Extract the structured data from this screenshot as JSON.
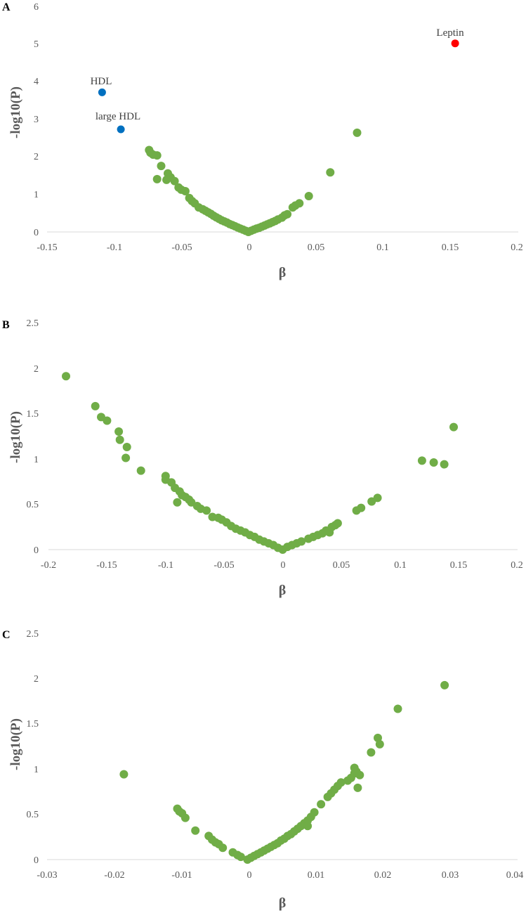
{
  "chart_data": [
    {
      "type": "scatter",
      "panel_label": "A",
      "xlabel": "β",
      "ylabel": "-log10(P)",
      "xlim": [
        -0.15,
        0.2
      ],
      "ylim": [
        0,
        6
      ],
      "x_ticks": [
        "-0.15",
        "-0.1",
        "-0.05",
        "0",
        "0.05",
        "0.1",
        "0.15",
        "0.2"
      ],
      "y_ticks": [
        "0",
        "1",
        "2",
        "3",
        "4",
        "5",
        "6"
      ],
      "grid": false,
      "colors": {
        "points": "#70ad47",
        "highlight_negative": "#0070c0",
        "highlight_positive": "#ff0000",
        "axis": "#d9d9d9"
      },
      "annotations": [
        {
          "text": "HDL",
          "x": -0.109,
          "y": 3.7
        },
        {
          "text": "large HDL",
          "x": -0.095,
          "y": 2.72
        },
        {
          "text": "Leptin",
          "x": 0.154,
          "y": 5.0
        }
      ],
      "highlighted_points": [
        {
          "label": "HDL",
          "x": -0.109,
          "y": 3.7,
          "color": "#0070c0"
        },
        {
          "label": "large HDL",
          "x": -0.095,
          "y": 2.72,
          "color": "#0070c0"
        },
        {
          "label": "Leptin",
          "x": 0.154,
          "y": 5.0,
          "color": "#ff0000"
        }
      ],
      "points": [
        [
          -0.074,
          2.17
        ],
        [
          -0.073,
          2.1
        ],
        [
          -0.071,
          2.05
        ],
        [
          -0.068,
          2.03
        ],
        [
          -0.065,
          1.75
        ],
        [
          -0.068,
          1.4
        ],
        [
          -0.06,
          1.55
        ],
        [
          -0.058,
          1.45
        ],
        [
          -0.061,
          1.38
        ],
        [
          -0.055,
          1.35
        ],
        [
          -0.052,
          1.18
        ],
        [
          -0.05,
          1.12
        ],
        [
          -0.047,
          1.08
        ],
        [
          -0.044,
          0.9
        ],
        [
          -0.042,
          0.82
        ],
        [
          -0.04,
          0.76
        ],
        [
          -0.037,
          0.65
        ],
        [
          -0.034,
          0.6
        ],
        [
          -0.032,
          0.56
        ],
        [
          -0.03,
          0.52
        ],
        [
          -0.028,
          0.48
        ],
        [
          -0.026,
          0.43
        ],
        [
          -0.024,
          0.39
        ],
        [
          -0.022,
          0.35
        ],
        [
          -0.02,
          0.31
        ],
        [
          -0.018,
          0.28
        ],
        [
          -0.016,
          0.25
        ],
        [
          -0.014,
          0.21
        ],
        [
          -0.012,
          0.18
        ],
        [
          -0.01,
          0.15
        ],
        [
          -0.008,
          0.12
        ],
        [
          -0.006,
          0.09
        ],
        [
          -0.004,
          0.06
        ],
        [
          -0.002,
          0.03
        ],
        [
          0.0,
          0.0
        ],
        [
          0.002,
          0.03
        ],
        [
          0.004,
          0.06
        ],
        [
          0.006,
          0.09
        ],
        [
          0.008,
          0.11
        ],
        [
          0.01,
          0.14
        ],
        [
          0.012,
          0.17
        ],
        [
          0.014,
          0.2
        ],
        [
          0.016,
          0.23
        ],
        [
          0.018,
          0.26
        ],
        [
          0.02,
          0.29
        ],
        [
          0.022,
          0.33
        ],
        [
          0.025,
          0.38
        ],
        [
          0.027,
          0.44
        ],
        [
          0.029,
          0.47
        ],
        [
          0.033,
          0.65
        ],
        [
          0.035,
          0.7
        ],
        [
          0.038,
          0.76
        ],
        [
          0.045,
          0.95
        ],
        [
          0.061,
          1.58
        ],
        [
          0.081,
          2.63
        ]
      ]
    },
    {
      "type": "scatter",
      "panel_label": "B",
      "xlabel": "β",
      "ylabel": "-log10(P)",
      "xlim": [
        -0.2,
        0.2
      ],
      "ylim": [
        0,
        2.5
      ],
      "x_ticks": [
        "-0.2",
        "-0.15",
        "-0.1",
        "-0.05",
        "0",
        "0.05",
        "0.1",
        "0.15",
        "0.2"
      ],
      "y_ticks": [
        "0",
        "0.5",
        "1",
        "1.5",
        "2",
        "2.5"
      ],
      "grid": false,
      "colors": {
        "points": "#70ad47",
        "axis": "#d9d9d9"
      },
      "points": [
        [
          -0.185,
          1.91
        ],
        [
          -0.16,
          1.58
        ],
        [
          -0.155,
          1.46
        ],
        [
          -0.15,
          1.42
        ],
        [
          -0.14,
          1.3
        ],
        [
          -0.139,
          1.21
        ],
        [
          -0.133,
          1.13
        ],
        [
          -0.134,
          1.01
        ],
        [
          -0.121,
          0.87
        ],
        [
          -0.1,
          0.81
        ],
        [
          -0.1,
          0.77
        ],
        [
          -0.095,
          0.74
        ],
        [
          -0.092,
          0.68
        ],
        [
          -0.088,
          0.64
        ],
        [
          -0.09,
          0.52
        ],
        [
          -0.086,
          0.6
        ],
        [
          -0.083,
          0.58
        ],
        [
          -0.08,
          0.55
        ],
        [
          -0.078,
          0.52
        ],
        [
          -0.073,
          0.48
        ],
        [
          -0.07,
          0.45
        ],
        [
          -0.065,
          0.43
        ],
        [
          -0.06,
          0.36
        ],
        [
          -0.055,
          0.35
        ],
        [
          -0.052,
          0.33
        ],
        [
          -0.048,
          0.3
        ],
        [
          -0.044,
          0.26
        ],
        [
          -0.04,
          0.23
        ],
        [
          -0.036,
          0.21
        ],
        [
          -0.032,
          0.19
        ],
        [
          -0.028,
          0.16
        ],
        [
          -0.024,
          0.14
        ],
        [
          -0.02,
          0.11
        ],
        [
          -0.016,
          0.09
        ],
        [
          -0.012,
          0.07
        ],
        [
          -0.008,
          0.05
        ],
        [
          -0.004,
          0.02
        ],
        [
          0.0,
          0.0
        ],
        [
          0.004,
          0.03
        ],
        [
          0.008,
          0.05
        ],
        [
          0.012,
          0.07
        ],
        [
          0.016,
          0.09
        ],
        [
          0.022,
          0.12
        ],
        [
          0.026,
          0.14
        ],
        [
          0.03,
          0.16
        ],
        [
          0.034,
          0.18
        ],
        [
          0.037,
          0.21
        ],
        [
          0.04,
          0.19
        ],
        [
          0.042,
          0.25
        ],
        [
          0.045,
          0.27
        ],
        [
          0.047,
          0.29
        ],
        [
          0.063,
          0.43
        ],
        [
          0.067,
          0.46
        ],
        [
          0.076,
          0.53
        ],
        [
          0.081,
          0.57
        ],
        [
          0.119,
          0.98
        ],
        [
          0.129,
          0.96
        ],
        [
          0.138,
          0.94
        ],
        [
          0.146,
          1.35
        ]
      ]
    },
    {
      "type": "scatter",
      "panel_label": "C",
      "xlabel": "β",
      "ylabel": "-log10(P)",
      "xlim": [
        -0.03,
        0.04
      ],
      "ylim": [
        0,
        2.5
      ],
      "x_ticks": [
        "-0.03",
        "-0.02",
        "-0.01",
        "0",
        "0.01",
        "0.02",
        "0.03",
        "0.04"
      ],
      "y_ticks": [
        "0",
        "0.5",
        "1",
        "1.5",
        "2",
        "2.5"
      ],
      "grid": false,
      "colors": {
        "points": "#70ad47",
        "axis": "#d9d9d9"
      },
      "points": [
        [
          -0.0185,
          0.94
        ],
        [
          -0.0105,
          0.56
        ],
        [
          -0.0102,
          0.53
        ],
        [
          -0.0098,
          0.51
        ],
        [
          -0.0093,
          0.46
        ],
        [
          -0.0078,
          0.32
        ],
        [
          -0.0058,
          0.26
        ],
        [
          -0.0053,
          0.22
        ],
        [
          -0.0048,
          0.19
        ],
        [
          -0.0043,
          0.17
        ],
        [
          -0.0037,
          0.13
        ],
        [
          -0.0022,
          0.08
        ],
        [
          -0.0015,
          0.05
        ],
        [
          -0.001,
          0.03
        ],
        [
          0.0,
          0.0
        ],
        [
          0.0005,
          0.02
        ],
        [
          0.001,
          0.04
        ],
        [
          0.0015,
          0.06
        ],
        [
          0.002,
          0.08
        ],
        [
          0.0025,
          0.1
        ],
        [
          0.003,
          0.12
        ],
        [
          0.0035,
          0.14
        ],
        [
          0.004,
          0.16
        ],
        [
          0.0045,
          0.18
        ],
        [
          0.005,
          0.21
        ],
        [
          0.0055,
          0.23
        ],
        [
          0.006,
          0.26
        ],
        [
          0.0065,
          0.28
        ],
        [
          0.007,
          0.31
        ],
        [
          0.0075,
          0.34
        ],
        [
          0.008,
          0.37
        ],
        [
          0.0085,
          0.4
        ],
        [
          0.009,
          0.43
        ],
        [
          0.009,
          0.37
        ],
        [
          0.0095,
          0.47
        ],
        [
          0.01,
          0.52
        ],
        [
          0.011,
          0.61
        ],
        [
          0.012,
          0.69
        ],
        [
          0.0125,
          0.73
        ],
        [
          0.013,
          0.77
        ],
        [
          0.0135,
          0.81
        ],
        [
          0.014,
          0.85
        ],
        [
          0.015,
          0.87
        ],
        [
          0.0155,
          0.9
        ],
        [
          0.016,
          0.95
        ],
        [
          0.016,
          1.01
        ],
        [
          0.0163,
          0.97
        ],
        [
          0.0168,
          0.93
        ],
        [
          0.0165,
          0.79
        ],
        [
          0.0185,
          1.18
        ],
        [
          0.0195,
          1.34
        ],
        [
          0.0198,
          1.27
        ],
        [
          0.0225,
          1.66
        ],
        [
          0.0295,
          1.92
        ]
      ]
    }
  ]
}
